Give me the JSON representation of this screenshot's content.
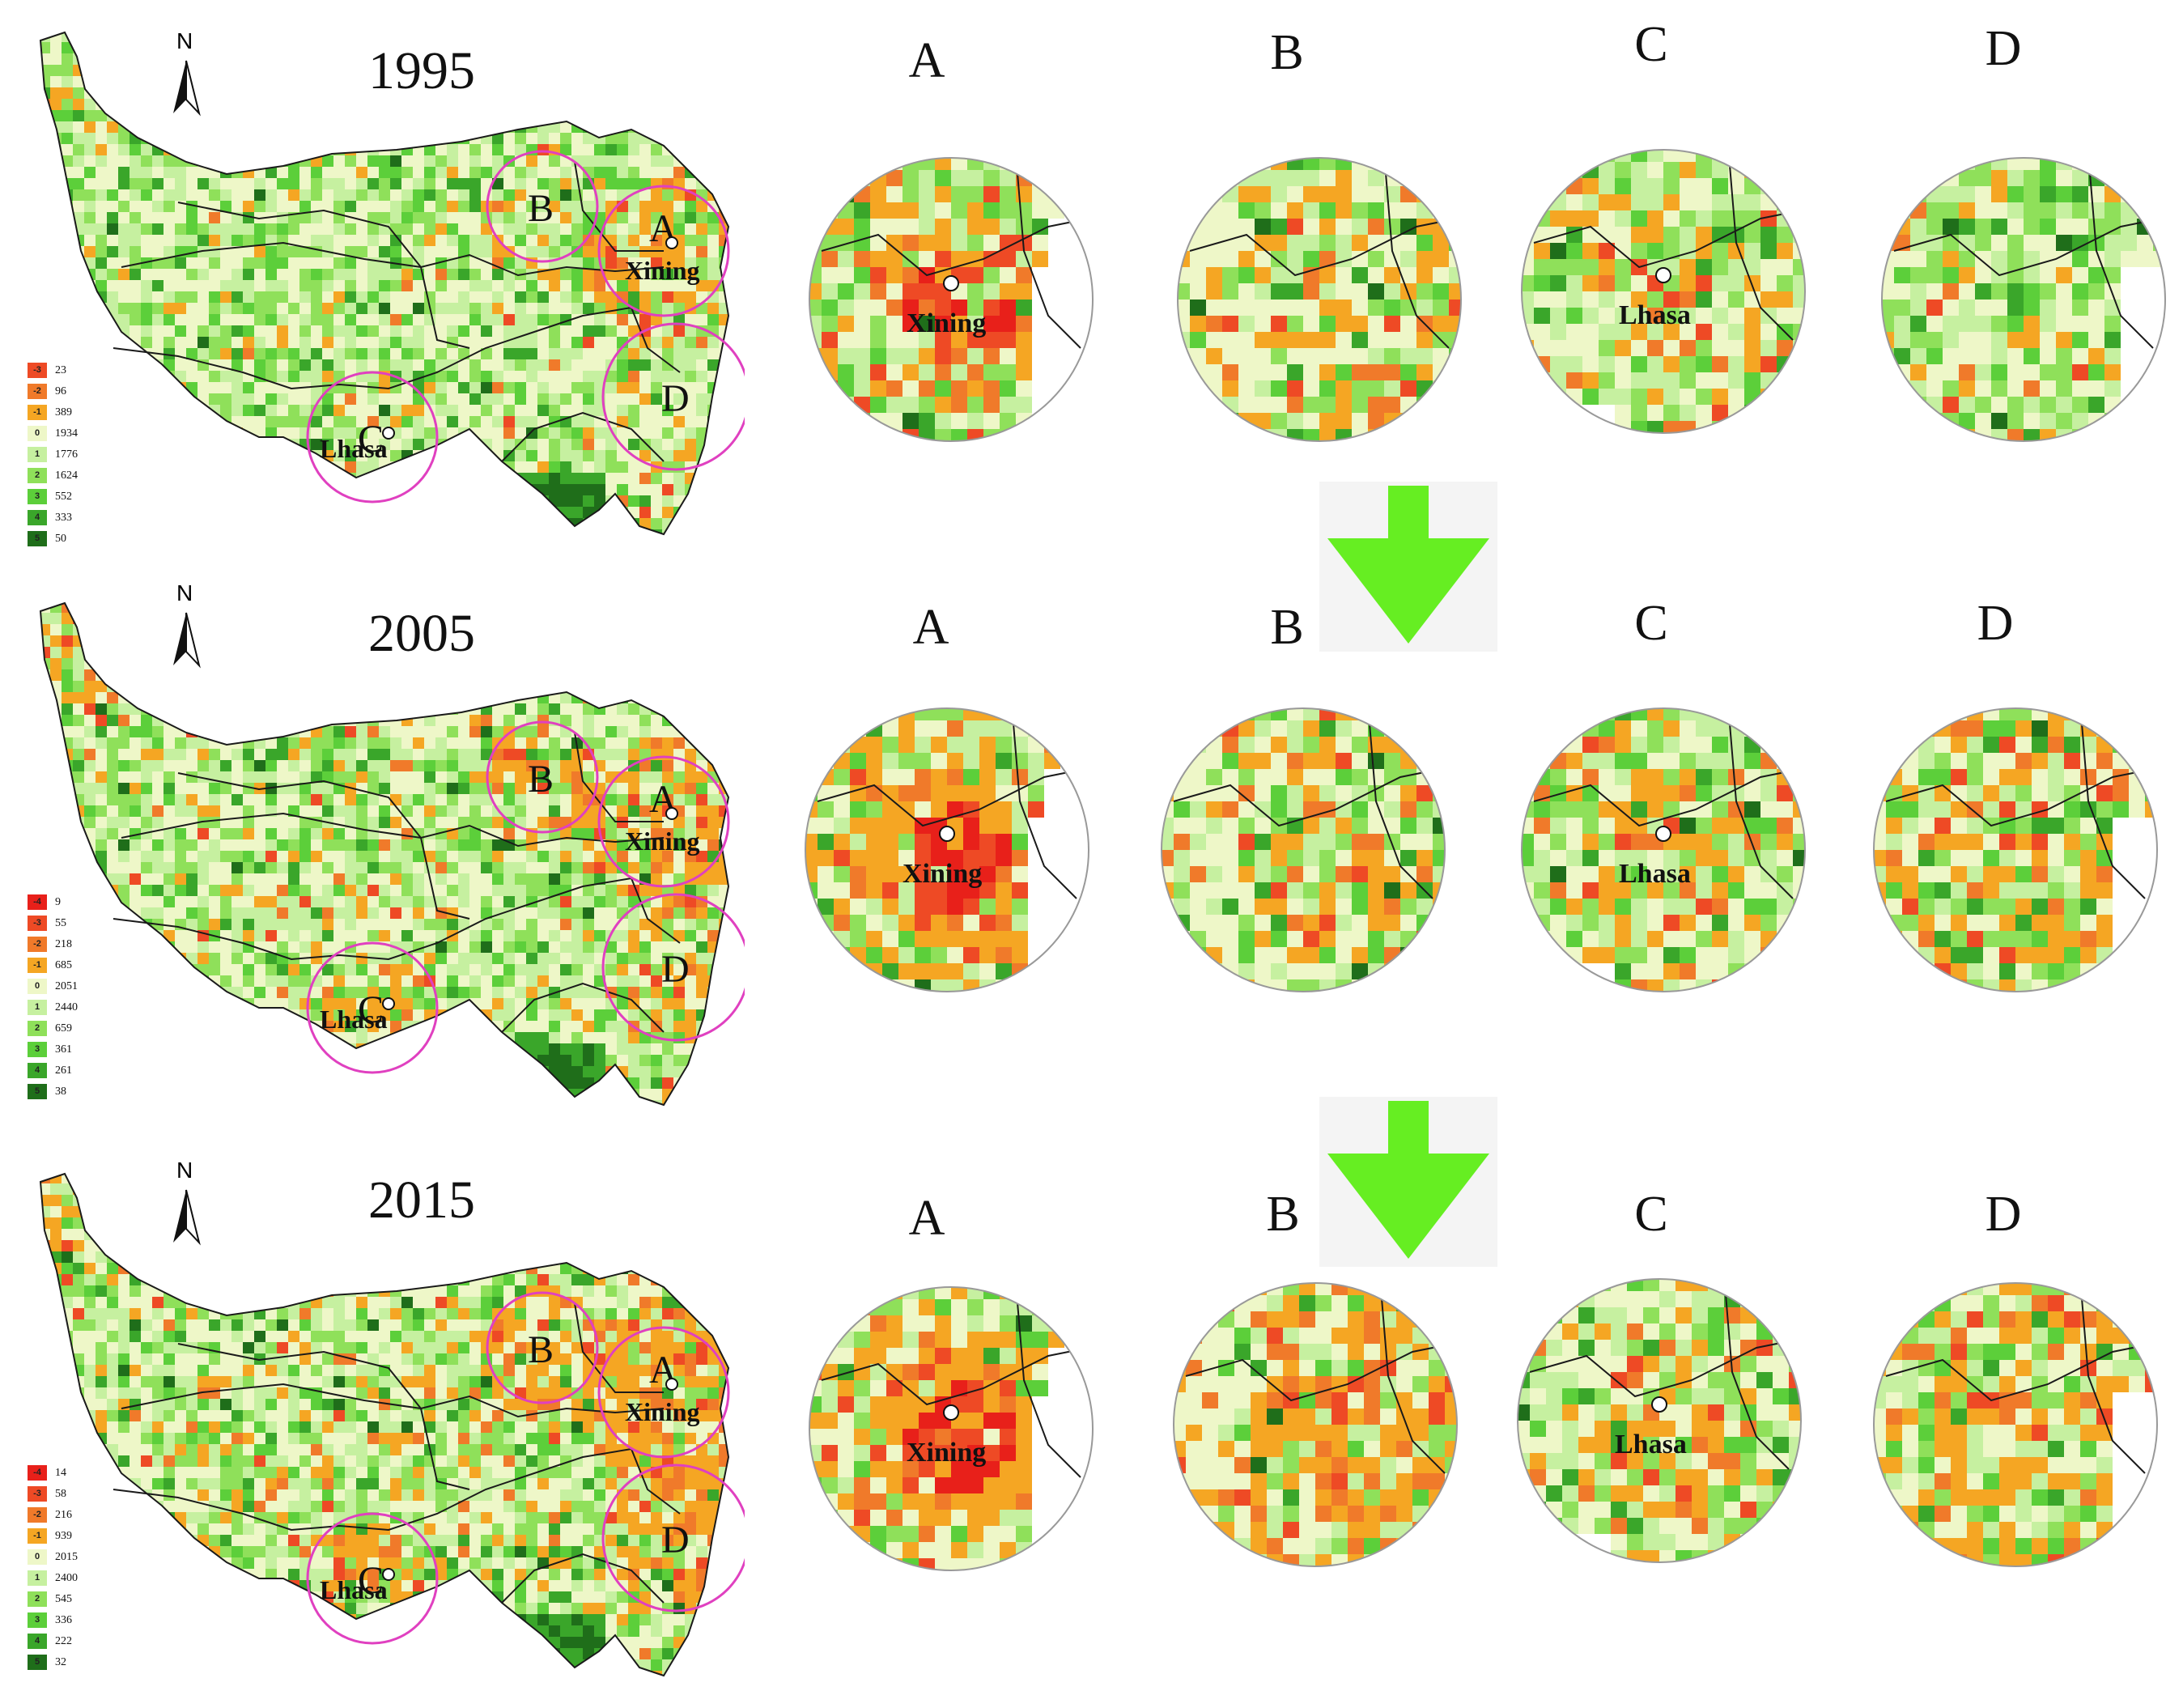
{
  "colors": {
    "-4": "#e8201a",
    "-3": "#ee4a25",
    "-2": "#f07a2a",
    "-1": "#f5a623",
    "0": "#eef7c8",
    "1": "#c6f0a0",
    "2": "#8fe05a",
    "3": "#5ccf3a",
    "4": "#3aa62a",
    "5": "#1f6e1a",
    "circle": "#e040c0",
    "boundary": "#1a1a1a",
    "arrow": "#66ee22"
  },
  "panels": [
    {
      "year": "1995",
      "north_label": "N",
      "map_labels": {
        "a": "A",
        "b": "B",
        "c": "C",
        "d": "D",
        "city_a": "Xining",
        "city_c": "Lhasa"
      },
      "legend": [
        {
          "code": "-3",
          "count": "23"
        },
        {
          "code": "-2",
          "count": "96"
        },
        {
          "code": "-1",
          "count": "389"
        },
        {
          "code": "0",
          "count": "1934"
        },
        {
          "code": "1",
          "count": "1776"
        },
        {
          "code": "2",
          "count": "1624"
        },
        {
          "code": "3",
          "count": "552"
        },
        {
          "code": "4",
          "count": "333"
        },
        {
          "code": "5",
          "count": "50"
        }
      ],
      "zoom_titles": [
        "A",
        "B",
        "C",
        "D"
      ],
      "zoom_cities": {
        "A": "Xining",
        "C": "Lhasa"
      }
    },
    {
      "year": "2005",
      "north_label": "N",
      "map_labels": {
        "a": "A",
        "b": "B",
        "c": "C",
        "d": "D",
        "city_a": "Xining",
        "city_c": "Lhasa"
      },
      "legend": [
        {
          "code": "-4",
          "count": "9"
        },
        {
          "code": "-3",
          "count": "55"
        },
        {
          "code": "-2",
          "count": "218"
        },
        {
          "code": "-1",
          "count": "685"
        },
        {
          "code": "0",
          "count": "2051"
        },
        {
          "code": "1",
          "count": "2440"
        },
        {
          "code": "2",
          "count": "659"
        },
        {
          "code": "3",
          "count": "361"
        },
        {
          "code": "4",
          "count": "261"
        },
        {
          "code": "5",
          "count": "38"
        }
      ],
      "zoom_titles": [
        "A",
        "B",
        "C",
        "D"
      ],
      "zoom_cities": {
        "A": "Xining",
        "C": "Lhasa"
      }
    },
    {
      "year": "2015",
      "north_label": "N",
      "map_labels": {
        "a": "A",
        "b": "B",
        "c": "C",
        "d": "D",
        "city_a": "Xining",
        "city_c": "Lhasa"
      },
      "legend": [
        {
          "code": "-4",
          "count": "14"
        },
        {
          "code": "-3",
          "count": "58"
        },
        {
          "code": "-2",
          "count": "216"
        },
        {
          "code": "-1",
          "count": "939"
        },
        {
          "code": "0",
          "count": "2015"
        },
        {
          "code": "1",
          "count": "2400"
        },
        {
          "code": "2",
          "count": "545"
        },
        {
          "code": "3",
          "count": "336"
        },
        {
          "code": "4",
          "count": "222"
        },
        {
          "code": "5",
          "count": "32"
        }
      ],
      "zoom_titles": [
        "A",
        "B",
        "C",
        "D"
      ],
      "zoom_cities": {
        "A": "Xining",
        "C": "Lhasa"
      }
    }
  ]
}
